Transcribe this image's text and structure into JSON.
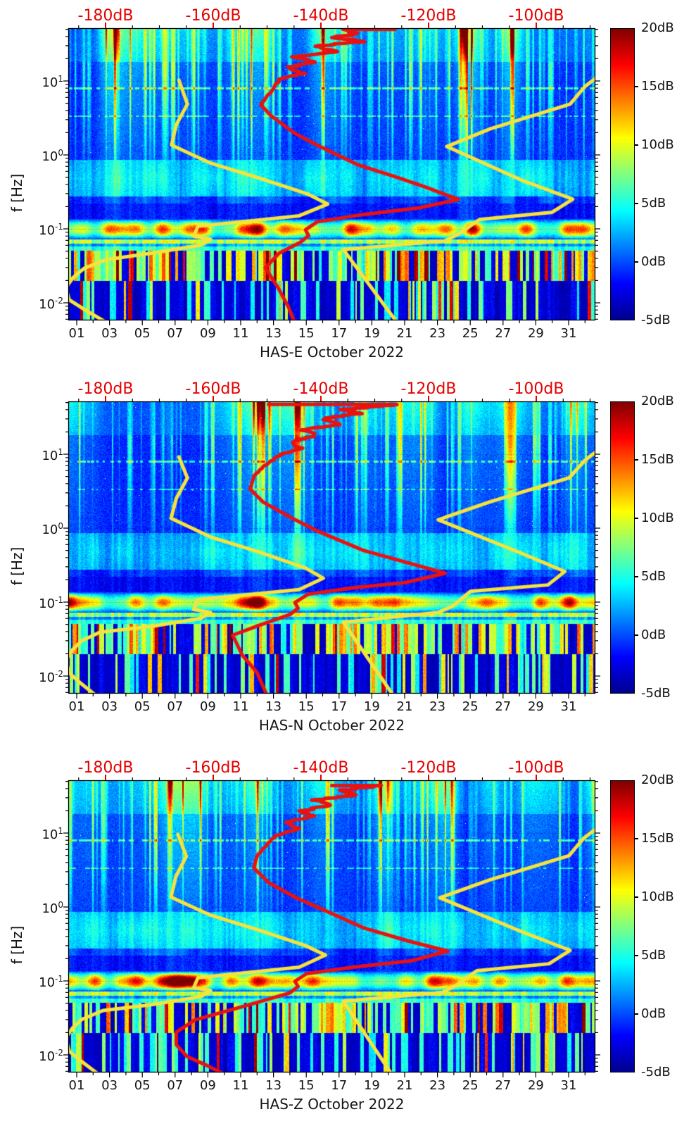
{
  "style": {
    "background": "#ffffff",
    "text_color": "#151515",
    "top_axis_color": "#e60000",
    "curve_yellow": "#f6e33c",
    "curve_red": "#ea1111",
    "colormap": "jet"
  },
  "chart_data": [
    {
      "type": "heatmap",
      "subtype": "seismic-noise-spectrogram",
      "station": "HAS-E",
      "title": "HAS-E October 2022",
      "ylabel": "f [Hz]",
      "y_scale": "log",
      "y_range_hz": [
        0.0058,
        51.8
      ],
      "y_ticks": [
        {
          "base": "10",
          "exp": "1"
        },
        {
          "base": "10",
          "exp": "0"
        },
        {
          "base": "10",
          "exp": "-1"
        },
        {
          "base": "10",
          "exp": "-2"
        }
      ],
      "x_ticks": [
        "01",
        "03",
        "05",
        "07",
        "09",
        "11",
        "13",
        "15",
        "17",
        "19",
        "21",
        "23",
        "25",
        "27",
        "29",
        "31"
      ],
      "x_tick_values": [
        1,
        3,
        5,
        7,
        9,
        11,
        13,
        15,
        17,
        19,
        21,
        23,
        25,
        27,
        29,
        31
      ],
      "top_axis": {
        "labels": [
          "-180dB",
          "-160dB",
          "-140dB",
          "-120dB",
          "-100dB"
        ],
        "values_db": [
          -180,
          -160,
          -140,
          -120,
          -100
        ],
        "range_db": [
          -187,
          -89
        ]
      },
      "colorbar": {
        "labels": [
          "20dB",
          "15dB",
          "10dB",
          "5dB",
          "0dB",
          "-5dB"
        ],
        "values_db": [
          20,
          15,
          10,
          5,
          0,
          -5
        ],
        "range_db": [
          -5,
          20
        ],
        "colormap": "jet"
      },
      "curves": {
        "note": "points are [x,y] fractions of the plot area; x maps to the top dB axis (-187 dB left edge, -89 dB right edge), y maps to log10 frequency (51.8 Hz top, 0.0058 Hz bottom)",
        "yellow_low_noise_model": [
          [
            0.21,
            0.178
          ],
          [
            0.226,
            0.26
          ],
          [
            0.205,
            0.33
          ],
          [
            0.196,
            0.4
          ],
          [
            0.27,
            0.462
          ],
          [
            0.36,
            0.512
          ],
          [
            0.455,
            0.568
          ],
          [
            0.492,
            0.602
          ],
          [
            0.438,
            0.642
          ],
          [
            0.246,
            0.678
          ],
          [
            0.238,
            0.712
          ],
          [
            0.27,
            0.722
          ],
          [
            0.252,
            0.742
          ],
          [
            0.158,
            0.77
          ],
          [
            0.072,
            0.792
          ],
          [
            0.03,
            0.822
          ],
          [
            0.01,
            0.852
          ],
          [
            -0.005,
            0.888
          ],
          [
            0.002,
            0.93
          ],
          [
            0.03,
            0.962
          ],
          [
            0.075,
            1.01
          ]
        ],
        "yellow_high_noise_model": [
          [
            1.01,
            0.158
          ],
          [
            0.98,
            0.2
          ],
          [
            0.952,
            0.26
          ],
          [
            0.8,
            0.345
          ],
          [
            0.718,
            0.405
          ],
          [
            0.86,
            0.52
          ],
          [
            0.957,
            0.585
          ],
          [
            0.918,
            0.63
          ],
          [
            0.78,
            0.655
          ],
          [
            0.742,
            0.703
          ],
          [
            0.714,
            0.728
          ],
          [
            0.522,
            0.758
          ],
          [
            0.625,
            1.01
          ]
        ],
        "red_median_psd": [
          [
            0.62,
            0.004
          ],
          [
            0.53,
            0.004
          ],
          [
            0.545,
            0.018
          ],
          [
            0.505,
            0.032
          ],
          [
            0.56,
            0.045
          ],
          [
            0.47,
            0.062
          ],
          [
            0.51,
            0.08
          ],
          [
            0.432,
            0.098
          ],
          [
            0.47,
            0.115
          ],
          [
            0.415,
            0.135
          ],
          [
            0.445,
            0.155
          ],
          [
            0.4,
            0.175
          ],
          [
            0.392,
            0.2
          ],
          [
            0.378,
            0.23
          ],
          [
            0.365,
            0.262
          ],
          [
            0.385,
            0.3
          ],
          [
            0.43,
            0.36
          ],
          [
            0.472,
            0.4
          ],
          [
            0.55,
            0.468
          ],
          [
            0.62,
            0.508
          ],
          [
            0.672,
            0.54
          ],
          [
            0.74,
            0.586
          ],
          [
            0.665,
            0.615
          ],
          [
            0.55,
            0.64
          ],
          [
            0.472,
            0.663
          ],
          [
            0.45,
            0.69
          ],
          [
            0.456,
            0.71
          ],
          [
            0.44,
            0.733
          ],
          [
            0.4,
            0.77
          ],
          [
            0.374,
            0.82
          ],
          [
            0.398,
            0.888
          ],
          [
            0.418,
            0.955
          ],
          [
            0.43,
            1.01
          ]
        ]
      }
    },
    {
      "type": "heatmap",
      "subtype": "seismic-noise-spectrogram",
      "station": "HAS-N",
      "title": "HAS-N October 2022",
      "ylabel": "f [Hz]",
      "y_scale": "log",
      "y_range_hz": [
        0.0058,
        51.8
      ],
      "y_ticks": [
        {
          "base": "10",
          "exp": "1"
        },
        {
          "base": "10",
          "exp": "0"
        },
        {
          "base": "10",
          "exp": "-1"
        },
        {
          "base": "10",
          "exp": "-2"
        }
      ],
      "x_ticks": [
        "01",
        "03",
        "05",
        "07",
        "09",
        "11",
        "13",
        "15",
        "17",
        "19",
        "21",
        "23",
        "25",
        "27",
        "29",
        "31"
      ],
      "x_tick_values": [
        1,
        3,
        5,
        7,
        9,
        11,
        13,
        15,
        17,
        19,
        21,
        23,
        25,
        27,
        29,
        31
      ],
      "top_axis": {
        "labels": [
          "-180dB",
          "-160dB",
          "-140dB",
          "-120dB",
          "-100dB"
        ],
        "values_db": [
          -180,
          -160,
          -140,
          -120,
          -100
        ],
        "range_db": [
          -187,
          -89
        ]
      },
      "colorbar": {
        "labels": [
          "20dB",
          "15dB",
          "10dB",
          "5dB",
          "0dB",
          "-5dB"
        ],
        "values_db": [
          20,
          15,
          10,
          5,
          0,
          -5
        ],
        "range_db": [
          -5,
          20
        ],
        "colormap": "jet"
      },
      "curves": {
        "note": "points are [x,y] fractions of the plot area; x maps to the top dB axis (-187 dB left edge, -89 dB right edge), y maps to log10 frequency (51.8 Hz top, 0.0058 Hz bottom)",
        "yellow_low_noise_model": [
          [
            0.21,
            0.19
          ],
          [
            0.226,
            0.262
          ],
          [
            0.205,
            0.332
          ],
          [
            0.195,
            0.4
          ],
          [
            0.27,
            0.464
          ],
          [
            0.36,
            0.514
          ],
          [
            0.45,
            0.57
          ],
          [
            0.484,
            0.605
          ],
          [
            0.438,
            0.644
          ],
          [
            0.246,
            0.678
          ],
          [
            0.238,
            0.712
          ],
          [
            0.27,
            0.722
          ],
          [
            0.252,
            0.742
          ],
          [
            0.158,
            0.77
          ],
          [
            0.06,
            0.79
          ],
          [
            0.025,
            0.82
          ],
          [
            0.008,
            0.85
          ],
          [
            -0.005,
            0.885
          ],
          [
            0.002,
            0.93
          ],
          [
            0.022,
            0.962
          ],
          [
            0.055,
            1.01
          ]
        ],
        "yellow_high_noise_model": [
          [
            1.01,
            0.16
          ],
          [
            0.98,
            0.202
          ],
          [
            0.95,
            0.262
          ],
          [
            0.798,
            0.345
          ],
          [
            0.702,
            0.405
          ],
          [
            0.86,
            0.52
          ],
          [
            0.942,
            0.582
          ],
          [
            0.91,
            0.628
          ],
          [
            0.763,
            0.65
          ],
          [
            0.73,
            0.7
          ],
          [
            0.702,
            0.722
          ],
          [
            0.522,
            0.756
          ],
          [
            0.618,
            1.01
          ]
        ],
        "red_median_psd": [
          [
            0.38,
            0.01
          ],
          [
            0.625,
            0.01
          ],
          [
            0.52,
            0.028
          ],
          [
            0.555,
            0.042
          ],
          [
            0.48,
            0.06
          ],
          [
            0.515,
            0.078
          ],
          [
            0.445,
            0.098
          ],
          [
            0.47,
            0.118
          ],
          [
            0.42,
            0.14
          ],
          [
            0.44,
            0.16
          ],
          [
            0.4,
            0.185
          ],
          [
            0.375,
            0.215
          ],
          [
            0.352,
            0.255
          ],
          [
            0.345,
            0.3
          ],
          [
            0.37,
            0.345
          ],
          [
            0.425,
            0.4
          ],
          [
            0.472,
            0.443
          ],
          [
            0.56,
            0.51
          ],
          [
            0.65,
            0.555
          ],
          [
            0.715,
            0.588
          ],
          [
            0.64,
            0.62
          ],
          [
            0.54,
            0.638
          ],
          [
            0.455,
            0.66
          ],
          [
            0.43,
            0.688
          ],
          [
            0.436,
            0.708
          ],
          [
            0.42,
            0.73
          ],
          [
            0.36,
            0.768
          ],
          [
            0.312,
            0.8
          ],
          [
            0.33,
            0.868
          ],
          [
            0.358,
            0.928
          ],
          [
            0.378,
            1.01
          ]
        ]
      }
    },
    {
      "type": "heatmap",
      "subtype": "seismic-noise-spectrogram",
      "station": "HAS-Z",
      "title": "HAS-Z October 2022",
      "ylabel": "f [Hz]",
      "y_scale": "log",
      "y_range_hz": [
        0.0058,
        51.8
      ],
      "y_ticks": [
        {
          "base": "10",
          "exp": "1"
        },
        {
          "base": "10",
          "exp": "0"
        },
        {
          "base": "10",
          "exp": "-1"
        },
        {
          "base": "10",
          "exp": "-2"
        }
      ],
      "x_ticks": [
        "01",
        "03",
        "05",
        "07",
        "09",
        "11",
        "13",
        "15",
        "17",
        "19",
        "21",
        "23",
        "25",
        "27",
        "29",
        "31"
      ],
      "x_tick_values": [
        1,
        3,
        5,
        7,
        9,
        11,
        13,
        15,
        17,
        19,
        21,
        23,
        25,
        27,
        29,
        31
      ],
      "top_axis": {
        "labels": [
          "-180dB",
          "-160dB",
          "-140dB",
          "-120dB",
          "-100dB"
        ],
        "values_db": [
          -180,
          -160,
          -140,
          -120,
          -100
        ],
        "range_db": [
          -187,
          -89
        ]
      },
      "colorbar": {
        "labels": [
          "20dB",
          "15dB",
          "10dB",
          "5dB",
          "0dB",
          "-5dB"
        ],
        "values_db": [
          20,
          15,
          10,
          5,
          0,
          -5
        ],
        "range_db": [
          -5,
          20
        ],
        "colormap": "jet"
      },
      "curves": {
        "note": "points are [x,y] fractions of the plot area; x maps to the top dB axis (-187 dB left edge, -89 dB right edge), y maps to log10 frequency (51.8 Hz top, 0.0058 Hz bottom)",
        "yellow_low_noise_model": [
          [
            0.208,
            0.185
          ],
          [
            0.224,
            0.26
          ],
          [
            0.204,
            0.33
          ],
          [
            0.195,
            0.4
          ],
          [
            0.27,
            0.462
          ],
          [
            0.36,
            0.512
          ],
          [
            0.45,
            0.566
          ],
          [
            0.488,
            0.598
          ],
          [
            0.438,
            0.64
          ],
          [
            0.246,
            0.676
          ],
          [
            0.238,
            0.71
          ],
          [
            0.27,
            0.72
          ],
          [
            0.252,
            0.74
          ],
          [
            0.158,
            0.768
          ],
          [
            0.066,
            0.788
          ],
          [
            0.026,
            0.818
          ],
          [
            0.008,
            0.848
          ],
          [
            -0.005,
            0.882
          ],
          [
            0.002,
            0.928
          ],
          [
            0.024,
            0.96
          ],
          [
            0.06,
            1.01
          ]
        ],
        "yellow_high_noise_model": [
          [
            1.01,
            0.155
          ],
          [
            0.978,
            0.198
          ],
          [
            0.95,
            0.258
          ],
          [
            0.798,
            0.342
          ],
          [
            0.705,
            0.402
          ],
          [
            0.86,
            0.518
          ],
          [
            0.952,
            0.582
          ],
          [
            0.912,
            0.628
          ],
          [
            0.775,
            0.652
          ],
          [
            0.738,
            0.7
          ],
          [
            0.71,
            0.726
          ],
          [
            0.522,
            0.756
          ],
          [
            0.615,
            1.01
          ]
        ],
        "red_median_psd": [
          [
            0.5,
            0.018
          ],
          [
            0.59,
            0.018
          ],
          [
            0.52,
            0.034
          ],
          [
            0.545,
            0.05
          ],
          [
            0.47,
            0.068
          ],
          [
            0.5,
            0.085
          ],
          [
            0.44,
            0.105
          ],
          [
            0.465,
            0.122
          ],
          [
            0.415,
            0.145
          ],
          [
            0.435,
            0.165
          ],
          [
            0.395,
            0.19
          ],
          [
            0.375,
            0.22
          ],
          [
            0.358,
            0.26
          ],
          [
            0.352,
            0.3
          ],
          [
            0.38,
            0.35
          ],
          [
            0.43,
            0.4
          ],
          [
            0.48,
            0.44
          ],
          [
            0.56,
            0.505
          ],
          [
            0.645,
            0.55
          ],
          [
            0.72,
            0.585
          ],
          [
            0.65,
            0.618
          ],
          [
            0.54,
            0.64
          ],
          [
            0.452,
            0.662
          ],
          [
            0.43,
            0.688
          ],
          [
            0.436,
            0.706
          ],
          [
            0.42,
            0.728
          ],
          [
            0.33,
            0.775
          ],
          [
            0.24,
            0.82
          ],
          [
            0.205,
            0.862
          ],
          [
            0.205,
            0.905
          ],
          [
            0.225,
            0.945
          ],
          [
            0.262,
            0.975
          ],
          [
            0.3,
            1.01
          ]
        ]
      }
    }
  ]
}
